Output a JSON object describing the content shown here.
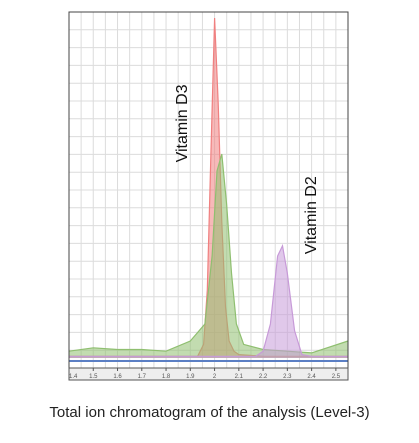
{
  "caption": "Total ion chromatogram of the analysis (Level-3)",
  "chart_data": {
    "type": "area",
    "title": "",
    "xlabel": "",
    "ylabel": "",
    "xlim": [
      1.4,
      2.55
    ],
    "ylim": [
      0,
      100
    ],
    "grid": true,
    "x_ticks": [
      1.4,
      1.5,
      1.6,
      1.7,
      1.8,
      1.9,
      2.0,
      2.1,
      2.2,
      2.3,
      2.4,
      2.5
    ],
    "x_tick_labels": [
      "1.4",
      "1.5",
      "1.6",
      "1.7",
      "1.8",
      "1.9",
      "2",
      "2.1",
      "2.2",
      "2.3",
      "2.4",
      "2.5"
    ],
    "series": [
      {
        "color": "#f08080",
        "x": [
          1.4,
          1.93,
          1.955,
          1.97,
          1.985,
          2.0,
          2.015,
          2.03,
          2.045,
          2.06,
          2.08,
          2.1,
          2.2,
          2.55
        ],
        "y": [
          0.5,
          0.5,
          4,
          20,
          60,
          100,
          75,
          40,
          15,
          5,
          2,
          1,
          0.5,
          0.5
        ]
      },
      {
        "color": "#8fbf70",
        "x": [
          1.4,
          1.5,
          1.6,
          1.7,
          1.8,
          1.9,
          1.96,
          1.99,
          2.01,
          2.03,
          2.05,
          2.07,
          2.09,
          2.12,
          2.2,
          2.3,
          2.4,
          2.55
        ],
        "y": [
          2,
          3,
          2.5,
          2.5,
          2,
          5,
          10,
          30,
          55,
          60,
          45,
          25,
          10,
          4,
          2.5,
          2,
          1.5,
          5
        ]
      },
      {
        "color": "#c79ad8",
        "x": [
          1.4,
          2.17,
          2.2,
          2.23,
          2.26,
          2.28,
          2.3,
          2.33,
          2.36,
          2.4,
          2.55
        ],
        "y": [
          0.5,
          0.5,
          2,
          10,
          30,
          33,
          25,
          8,
          1,
          0.5,
          0.5
        ]
      }
    ],
    "annotations": [
      {
        "text": "Vitamin D3",
        "x": 1.87,
        "y": 69,
        "rotation": -90
      },
      {
        "text": "Vitamin D2",
        "x": 2.4,
        "y": 42,
        "rotation": -90
      }
    ],
    "baseline_color": "#5b7fc4"
  }
}
